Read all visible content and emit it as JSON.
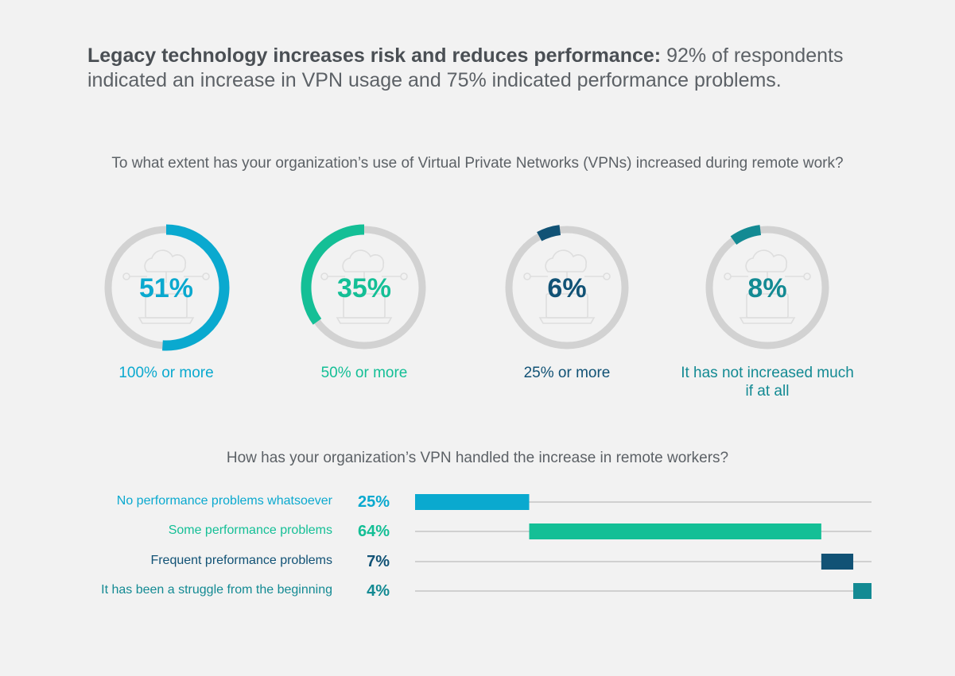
{
  "headline": {
    "bold": "Legacy technology increases risk and reduces performance:",
    "rest": " 92% of respondents indicated an increase in VPN usage and 75% indicated performance problems."
  },
  "colors": {
    "blue": "#0aa9cf",
    "green": "#14bf96",
    "navy": "#115275",
    "teal": "#138a93",
    "track": "#d2d2d2",
    "icon": "#dedede",
    "line": "#bdbdbd"
  },
  "chart_data": [
    {
      "type": "pie",
      "title": "To what extent has your organization’s use of Virtual Private Networks (VPNs) increased during remote work?",
      "categories": [
        "100% or more",
        "50% or more",
        "25% or more",
        "It has not increased much if at all"
      ],
      "values": [
        51,
        35,
        6,
        8
      ],
      "value_labels": [
        "51%",
        "35%",
        "6%",
        "8%"
      ],
      "series_colors": [
        "blue",
        "green",
        "navy",
        "teal"
      ]
    },
    {
      "type": "bar",
      "title": "How has your organization’s VPN handled the increase in remote workers?",
      "categories": [
        "No performance problems whatsoever",
        "Some performance problems",
        "Frequent preformance problems",
        "It has been a struggle from the beginning"
      ],
      "values": [
        25,
        64,
        7,
        4
      ],
      "value_labels": [
        "25%",
        "64%",
        "7%",
        "4%"
      ],
      "series_colors": [
        "blue",
        "green",
        "navy",
        "teal"
      ],
      "stacked": true,
      "xlim": [
        0,
        100
      ]
    }
  ]
}
